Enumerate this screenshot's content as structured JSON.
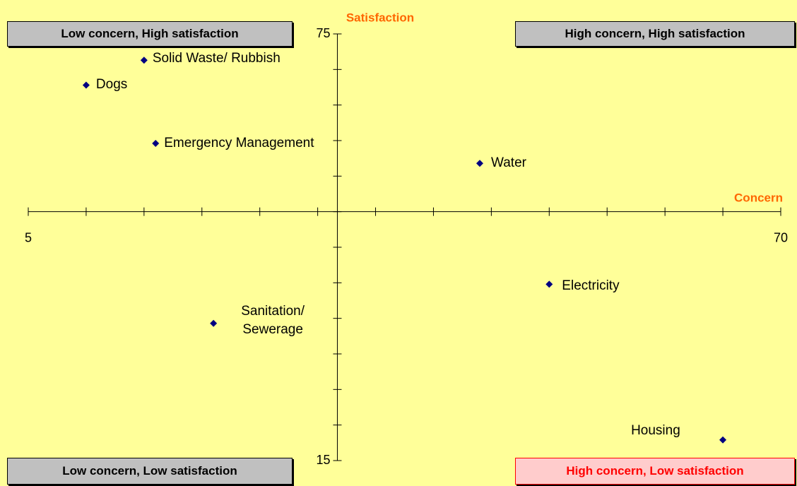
{
  "chart_data": {
    "type": "scatter",
    "x_label": "Concern",
    "y_label": "Satisfaction",
    "point_labels": [
      "Dogs",
      "Solid Waste/ Rubbish",
      "Emergency Management",
      "Water",
      "Electricity",
      "Sanitation/ Sewerage",
      "Housing"
    ],
    "x": [
      10,
      15,
      16,
      44,
      50,
      21,
      65
    ],
    "values": [
      67.8,
      71.3,
      59.6,
      56.8,
      39.8,
      34.3,
      17.9
    ],
    "color": "#000080",
    "xlim": [
      5,
      70
    ],
    "xticks": [
      5,
      70
    ],
    "minor_xticks": [
      10,
      15,
      20,
      25,
      30,
      35,
      40,
      45,
      50,
      55,
      60,
      65
    ],
    "ylim": [
      15,
      75
    ],
    "yticks": [
      15,
      75
    ],
    "minor_yticks": [
      20,
      25,
      30,
      35,
      40,
      45,
      50,
      55,
      60,
      65,
      70
    ],
    "x_axis_crosses_y": 50,
    "y_axis_crosses_x": 31.7,
    "quadrant_labels": {
      "top_left": "Low concern, High satisfaction",
      "top_right": "High concern, High satisfaction",
      "bottom_left": "Low concern, Low satisfaction",
      "bottom_right": "High concern, Low satisfaction"
    }
  }
}
